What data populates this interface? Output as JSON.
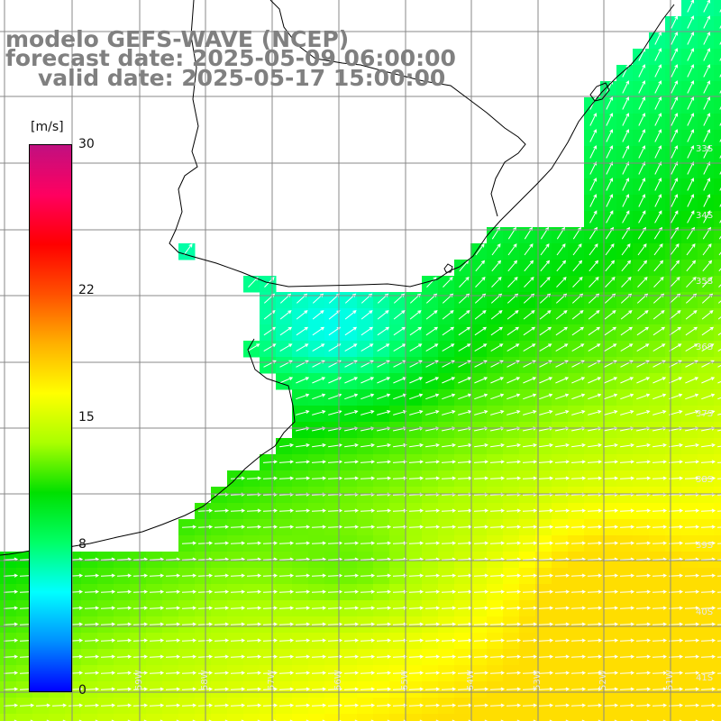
{
  "title": {
    "line1": "modelo GEFS-WAVE (NCEP)",
    "line2": "forecast date: 2025-05-09 06:00:00",
    "line3": "valid date: 2025-05-17 15:00:00"
  },
  "colorbar": {
    "unit": "[m/s]",
    "ticks": [
      {
        "label": "30",
        "value": 30
      },
      {
        "label": "22",
        "value": 22
      },
      {
        "label": "15",
        "value": 15
      },
      {
        "label": "8",
        "value": 8
      },
      {
        "label": "0",
        "value": 0
      }
    ],
    "stops": [
      "#0000ff",
      "#0090ff",
      "#00ffff",
      "#00ff66",
      "#00e000",
      "#aaff00",
      "#ffff00",
      "#ffb000",
      "#ff5000",
      "#ff0000",
      "#ff0060",
      "#c01080"
    ]
  },
  "lat_labels": [
    "33S",
    "34S",
    "35S",
    "36S",
    "37S",
    "38S",
    "39S",
    "40S",
    "41S"
  ],
  "lon_labels": [
    "59W",
    "58W",
    "57W",
    "56W",
    "55W",
    "54W",
    "53W",
    "52W",
    "51W"
  ],
  "colors": {
    "land": "#ffffff",
    "coastline": "#000000",
    "grid": "#888888",
    "arrows": "#ffffff",
    "title": "#808080"
  }
}
